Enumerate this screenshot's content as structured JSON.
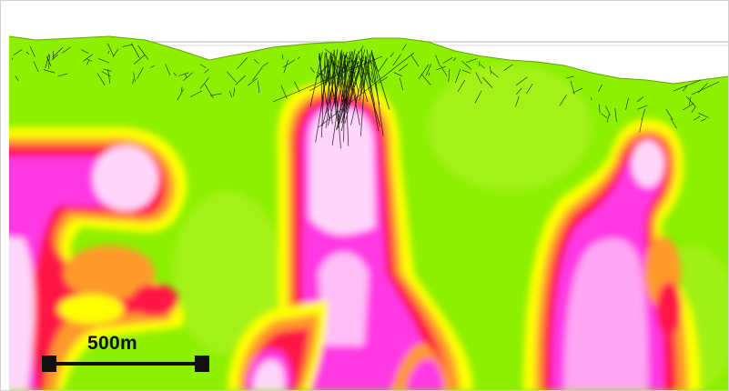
{
  "scale_bar": {
    "label": "500m"
  },
  "colors": {
    "background_low": "#8cf000",
    "ramp_mid_yellow": "#ffff00",
    "ramp_orange": "#ff9a2a",
    "ramp_red": "#ff1744",
    "ramp_magenta": "#ff38e4",
    "ramp_high_pink": "#ffd6fb",
    "drill_traces": "#000000",
    "sky": "#ffffff"
  },
  "icons": {
    "drillholes": "drillhole-traces-icon",
    "scale": "scale-bar-icon"
  }
}
